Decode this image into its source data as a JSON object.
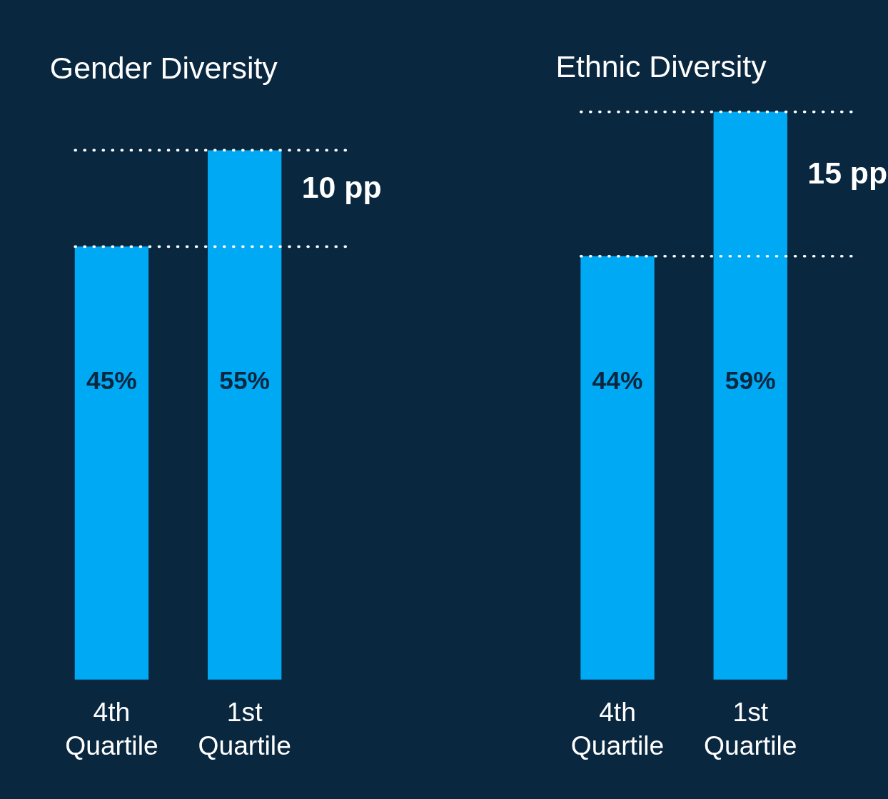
{
  "chart_data": [
    {
      "type": "bar",
      "title": "Gender Diversity",
      "categories": [
        "4th Quartile",
        "1st Quartile"
      ],
      "values": [
        45,
        55
      ],
      "color": "#00a9f4",
      "data_labels": true,
      "value_labels": [
        "45%",
        "55%"
      ],
      "tick_labels": "x",
      "ref_lines": [
        {
          "axis": "y",
          "value": 55,
          "color": "#ffffff",
          "line_style": "dotted"
        },
        {
          "axis": "y",
          "value": 45,
          "color": "#ffffff",
          "line_style": "dotted"
        }
      ],
      "annotations": [
        "10 pp"
      ]
    },
    {
      "type": "bar",
      "title": "Ethnic Diversity",
      "categories": [
        "4th Quartile",
        "1st Quartile"
      ],
      "values": [
        44,
        59
      ],
      "color": "#00a9f4",
      "data_labels": true,
      "value_labels": [
        "44%",
        "59%"
      ],
      "tick_labels": "x",
      "ref_lines": [
        {
          "axis": "y",
          "value": 59,
          "color": "#ffffff",
          "line_style": "dotted"
        },
        {
          "axis": "y",
          "value": 44,
          "color": "#ffffff",
          "line_style": "dotted"
        }
      ],
      "annotations": [
        "15 pp"
      ]
    }
  ]
}
